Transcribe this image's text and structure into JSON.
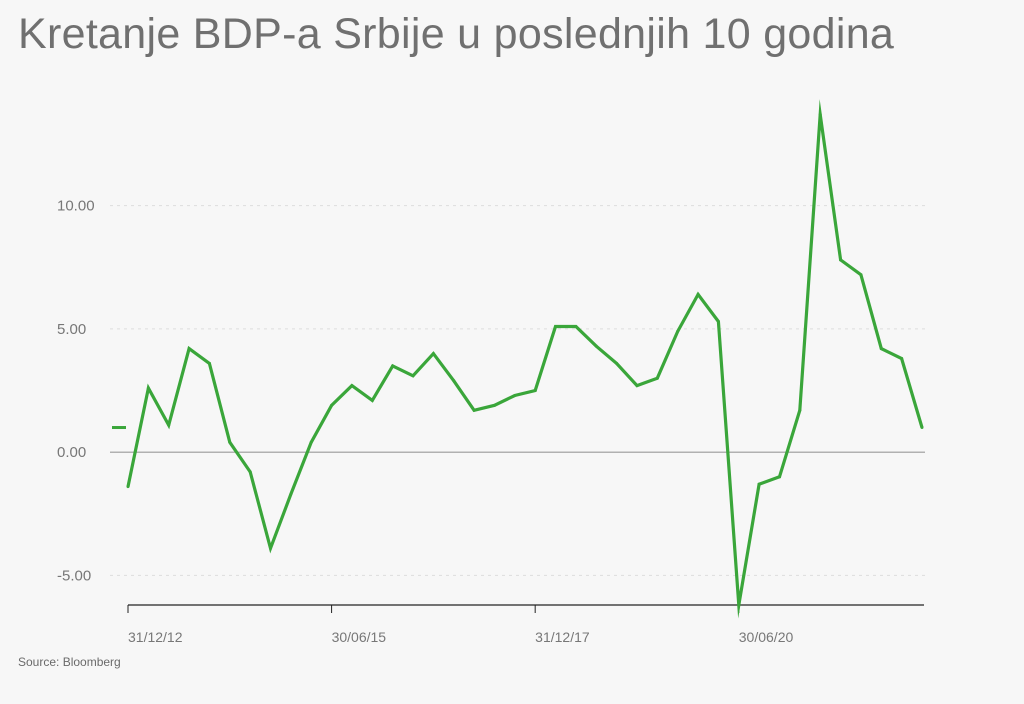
{
  "title": "Kretanje BDP-a Srbije u poslednjih 10 godina",
  "source": "Source: Bloomberg",
  "colors": {
    "line": "#3aa63a",
    "grid": "#dddddd",
    "zero": "#9a9a9a",
    "axis": "#222222",
    "text": "#777777",
    "background": "#f7f7f7"
  },
  "chart_data": {
    "type": "line",
    "title": "Kretanje BDP-a Srbije u poslednjih 10 godina",
    "xlabel": "",
    "ylabel": "",
    "ylim": [
      -6.2,
      13.8
    ],
    "yticks": [
      10,
      5,
      0,
      -5
    ],
    "ytick_labels": [
      "10.00",
      "5.00",
      "0.00",
      "-5.00"
    ],
    "xtick_labels": [
      {
        "label": "31/12/12",
        "index": 0
      },
      {
        "label": "30/06/15",
        "index": 10
      },
      {
        "label": "31/12/17",
        "index": 20
      },
      {
        "label": "30/06/20",
        "index": 30
      }
    ],
    "grid": "horizontal-dotted",
    "last_value_marker": 1.0,
    "series": [
      {
        "values": [
          -1.4,
          2.6,
          1.1,
          4.2,
          3.6,
          0.4,
          -0.8,
          -3.9,
          -1.7,
          0.4,
          1.9,
          2.7,
          2.1,
          3.5,
          3.1,
          4.0,
          2.9,
          1.7,
          1.9,
          2.3,
          2.5,
          5.1,
          5.1,
          4.3,
          3.6,
          2.7,
          3.0,
          4.9,
          6.4,
          5.3,
          -6.2,
          -1.3,
          -1.0,
          1.7,
          13.7,
          7.8,
          7.2,
          4.2,
          3.8,
          1.0
        ]
      }
    ]
  }
}
